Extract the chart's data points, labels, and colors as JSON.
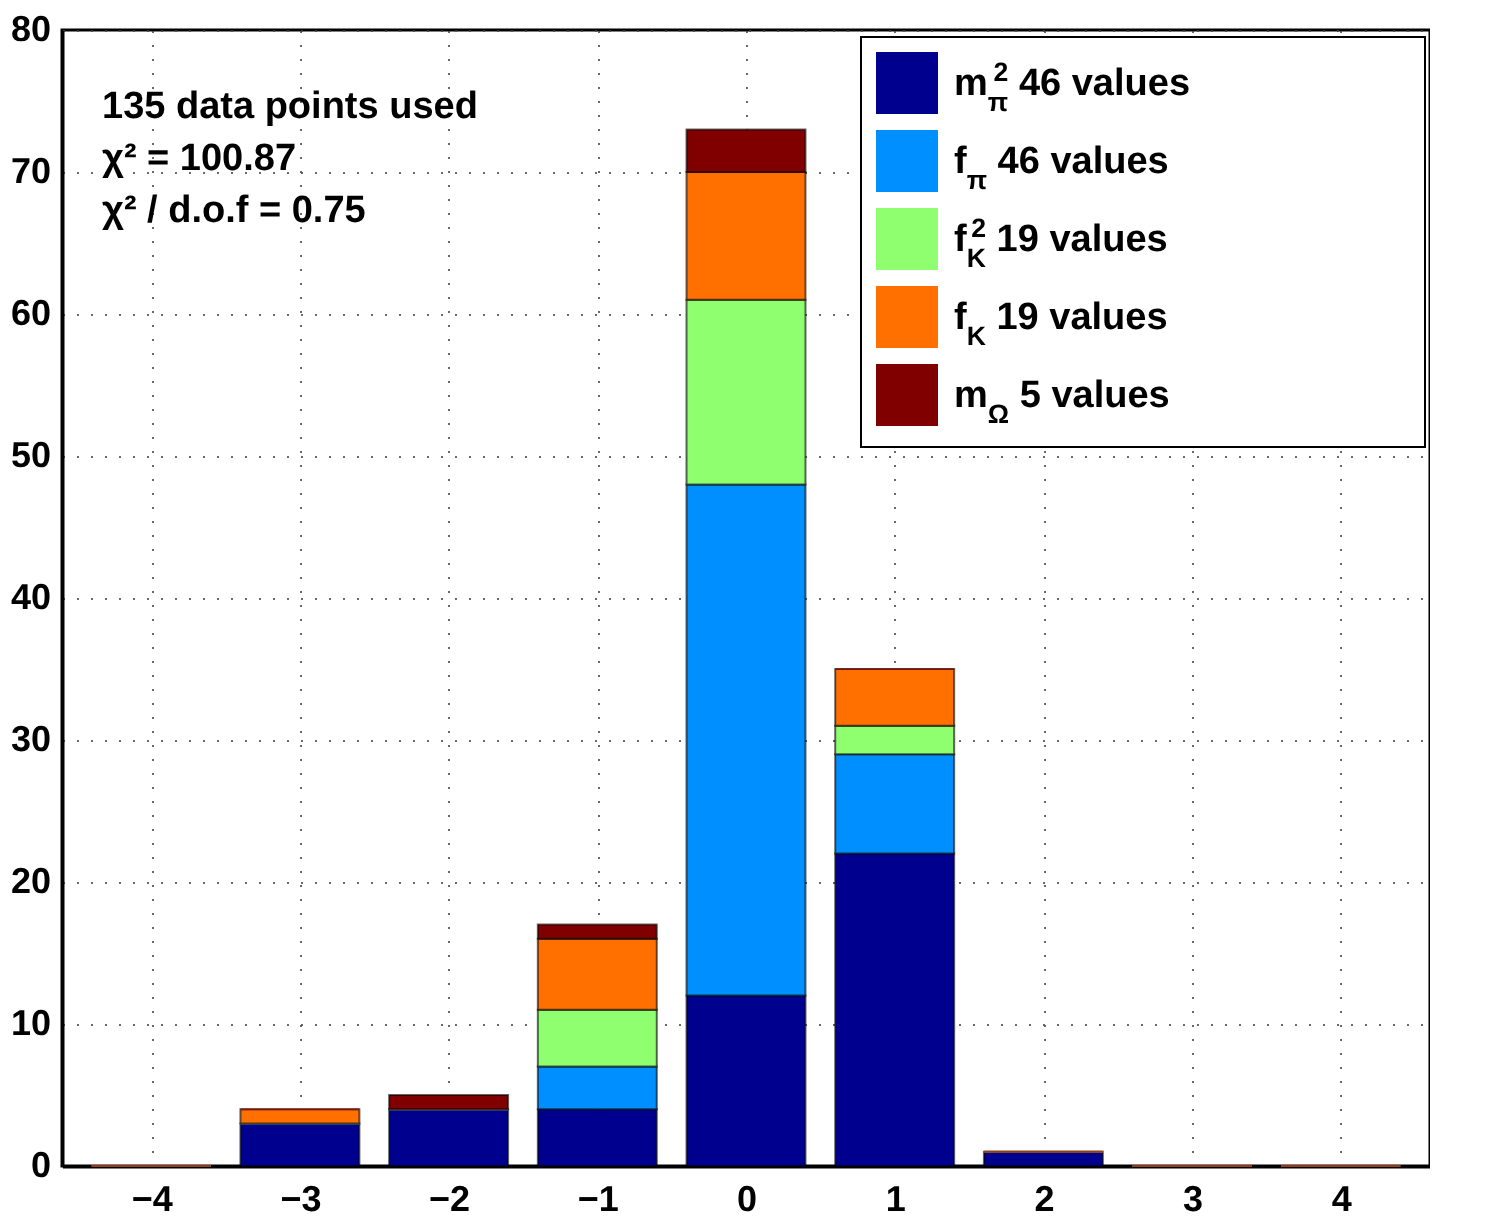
{
  "chart_data": {
    "type": "bar",
    "stacked": true,
    "x": [
      -4,
      -3,
      -2,
      -1,
      0,
      1,
      2,
      3,
      4
    ],
    "series": [
      {
        "name": "m$_{π}$$^{2}$ 46 values",
        "color": "#00008f",
        "values": [
          0,
          3,
          4,
          4,
          12,
          22,
          1,
          0,
          0
        ]
      },
      {
        "name": "f$_{π}$ 46 values",
        "color": "#008fff",
        "values": [
          0,
          0,
          0,
          3,
          36,
          7,
          0,
          0,
          0
        ]
      },
      {
        "name": "f$_{K}$$^{2}$ 19 values",
        "color": "#8fff70",
        "values": [
          0,
          0,
          0,
          4,
          13,
          2,
          0,
          0,
          0
        ]
      },
      {
        "name": "f$_{K}$ 19 values",
        "color": "#ff7000",
        "values": [
          0,
          1,
          0,
          5,
          9,
          4,
          0,
          0,
          0
        ]
      },
      {
        "name": "m$_{Ω}$ 5 values",
        "color": "#800000",
        "values": [
          0,
          0,
          1,
          1,
          3,
          0,
          0,
          0,
          0
        ]
      }
    ],
    "xlim": [
      -4.6,
      4.6
    ],
    "xticks": [
      -4,
      -3,
      -2,
      -1,
      0,
      1,
      2,
      3,
      4
    ],
    "ylim": [
      0,
      80
    ],
    "yticks": [
      0,
      10,
      20,
      30,
      40,
      50,
      60,
      70,
      80
    ],
    "grid": true,
    "legend": "top right",
    "annotations": [
      "135 data points used",
      "χ² = 100.87",
      "χ² / d.o.f = 0.75"
    ]
  }
}
